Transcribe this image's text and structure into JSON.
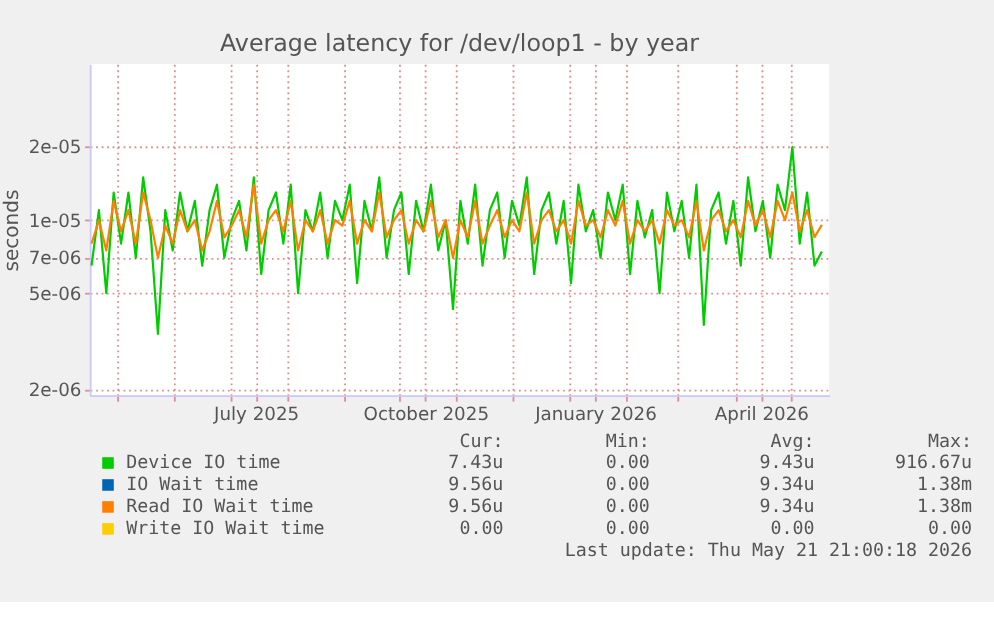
{
  "chart_data": {
    "type": "line",
    "title": "Average latency for /dev/loop1 - by year",
    "ylabel": "seconds",
    "x": [
      "2025-04-17",
      "2025-04-21",
      "2025-04-25",
      "2025-04-29",
      "2025-05-03",
      "2025-05-07",
      "2025-05-11",
      "2025-05-15",
      "2025-05-19",
      "2025-05-23",
      "2025-05-27",
      "2025-05-31",
      "2025-06-04",
      "2025-06-08",
      "2025-06-12",
      "2025-06-16",
      "2025-06-20",
      "2025-06-24",
      "2025-06-28",
      "2025-07-02",
      "2025-07-06",
      "2025-07-10",
      "2025-07-14",
      "2025-07-18",
      "2025-07-22",
      "2025-07-26",
      "2025-07-30",
      "2025-08-03",
      "2025-08-07",
      "2025-08-11",
      "2025-08-15",
      "2025-08-19",
      "2025-08-23",
      "2025-08-27",
      "2025-08-31",
      "2025-09-04",
      "2025-09-08",
      "2025-09-12",
      "2025-09-16",
      "2025-09-20",
      "2025-09-24",
      "2025-09-28",
      "2025-10-02",
      "2025-10-06",
      "2025-10-10",
      "2025-10-14",
      "2025-10-18",
      "2025-10-22",
      "2025-10-26",
      "2025-10-30",
      "2025-11-03",
      "2025-11-07",
      "2025-11-11",
      "2025-11-15",
      "2025-11-19",
      "2025-11-23",
      "2025-11-27",
      "2025-12-01",
      "2025-12-05",
      "2025-12-09",
      "2025-12-13",
      "2025-12-17",
      "2025-12-21",
      "2025-12-25",
      "2025-12-29",
      "2026-01-02",
      "2026-01-06",
      "2026-01-10",
      "2026-01-14",
      "2026-01-18",
      "2026-01-22",
      "2026-01-26",
      "2026-01-30",
      "2026-02-03",
      "2026-02-07",
      "2026-02-11",
      "2026-02-15",
      "2026-02-19",
      "2026-02-23",
      "2026-02-27",
      "2026-03-03",
      "2026-03-07",
      "2026-03-11",
      "2026-03-15",
      "2026-03-19",
      "2026-03-23",
      "2026-03-27",
      "2026-03-31",
      "2026-04-04",
      "2026-04-08",
      "2026-04-12",
      "2026-04-16",
      "2026-04-20",
      "2026-04-24",
      "2026-04-28",
      "2026-05-02",
      "2026-05-06",
      "2026-05-10",
      "2026-05-14",
      "2026-05-18"
    ],
    "series": [
      {
        "name": "Device IO time",
        "color": "#00cc00",
        "values": [
          6.5e-06,
          1.1e-05,
          5e-06,
          1.3e-05,
          8e-06,
          1.3e-05,
          7e-06,
          1.5e-05,
          9e-06,
          3.4e-06,
          1.1e-05,
          7.5e-06,
          1.3e-05,
          9e-06,
          1.2e-05,
          6.5e-06,
          1.1e-05,
          1.4e-05,
          7e-06,
          1e-05,
          1.2e-05,
          7.5e-06,
          1.5e-05,
          6e-06,
          1.1e-05,
          1.3e-05,
          8e-06,
          1.4e-05,
          5e-06,
          1.1e-05,
          9e-06,
          1.3e-05,
          7e-06,
          1.2e-05,
          1e-05,
          1.4e-05,
          5.5e-06,
          1.2e-05,
          9e-06,
          1.5e-05,
          7e-06,
          1.1e-05,
          1.3e-05,
          6e-06,
          1.2e-05,
          9e-06,
          1.4e-05,
          7.5e-06,
          1e-05,
          4.3e-06,
          1.2e-05,
          8e-06,
          1.4e-05,
          6.5e-06,
          1.1e-05,
          1.3e-05,
          7e-06,
          1.2e-05,
          9.5e-06,
          1.5e-05,
          6e-06,
          1.1e-05,
          1.3e-05,
          8e-06,
          1.2e-05,
          5.5e-06,
          1.4e-05,
          9e-06,
          1.1e-05,
          7e-06,
          1.3e-05,
          1e-05,
          1.4e-05,
          6e-06,
          1.2e-05,
          8.5e-06,
          1.1e-05,
          5e-06,
          1.3e-05,
          9e-06,
          1.2e-05,
          7e-06,
          1.4e-05,
          3.7e-06,
          1.1e-05,
          1.3e-05,
          8e-06,
          1.2e-05,
          6.5e-06,
          1.5e-05,
          9e-06,
          1.2e-05,
          7e-06,
          1.4e-05,
          1.1e-05,
          2e-05,
          8e-06,
          1.3e-05,
          6.5e-06,
          7.43e-06
        ]
      },
      {
        "name": "IO Wait time",
        "color": "#0066b3",
        "values": [
          null,
          null,
          null,
          null,
          null,
          null,
          null,
          null,
          null,
          null,
          null,
          null,
          null,
          null,
          null,
          null,
          null,
          null,
          null,
          null,
          null,
          null,
          null,
          null,
          null,
          null,
          null,
          null,
          null,
          null,
          null,
          null,
          null,
          null,
          null,
          null,
          null,
          null,
          null,
          null,
          null,
          null,
          null,
          null,
          null,
          null,
          null,
          null,
          null,
          null,
          null,
          null,
          null,
          null,
          null,
          null,
          null,
          null,
          null,
          null,
          null,
          null,
          null,
          null,
          null,
          null,
          null,
          null,
          null,
          null,
          null,
          null,
          null,
          null,
          null,
          null,
          null,
          null,
          null,
          null,
          null,
          null,
          null,
          null,
          null,
          null,
          null,
          null,
          null,
          null,
          null,
          null,
          null,
          null,
          null,
          null,
          null,
          null,
          null,
          null
        ]
      },
      {
        "name": "Read IO Wait time",
        "color": "#ff8000",
        "values": [
          8e-06,
          1e-05,
          7.5e-06,
          1.2e-05,
          9e-06,
          1.1e-05,
          8e-06,
          1.3e-05,
          1e-05,
          7e-06,
          9.5e-06,
          8e-06,
          1.1e-05,
          9e-06,
          1e-05,
          7.5e-06,
          9e-06,
          1.2e-05,
          8.5e-06,
          9.5e-06,
          1.1e-05,
          8.5e-06,
          1.4e-05,
          8e-06,
          1e-05,
          1.1e-05,
          9e-06,
          1.2e-05,
          7.5e-06,
          1e-05,
          9e-06,
          1.1e-05,
          8e-06,
          1e-05,
          9.5e-06,
          1.2e-05,
          8e-06,
          1e-05,
          9e-06,
          1.3e-05,
          8.5e-06,
          1e-05,
          1.1e-05,
          8e-06,
          1e-05,
          9e-06,
          1.2e-05,
          8.5e-06,
          1e-05,
          7e-06,
          1e-05,
          8.5e-06,
          1.2e-05,
          8e-06,
          9.5e-06,
          1.1e-05,
          8.5e-06,
          1e-05,
          9e-06,
          1.3e-05,
          8e-06,
          1e-05,
          1.1e-05,
          9e-06,
          1e-05,
          8e-06,
          1.2e-05,
          9.5e-06,
          1e-05,
          8.5e-06,
          1.1e-05,
          9.5e-06,
          1.2e-05,
          8e-06,
          1e-05,
          9e-06,
          1e-05,
          8e-06,
          1.1e-05,
          9.5e-06,
          1e-05,
          8.5e-06,
          1.2e-05,
          7.5e-06,
          1e-05,
          1.1e-05,
          9e-06,
          1e-05,
          8.5e-06,
          1.2e-05,
          9.5e-06,
          1.1e-05,
          8.5e-06,
          1.2e-05,
          1e-05,
          1.3e-05,
          9e-06,
          1.1e-05,
          8.5e-06,
          9.56e-06
        ]
      },
      {
        "name": "Write IO Wait time",
        "color": "#ffcc00",
        "values": [
          null,
          null,
          null,
          null,
          null,
          null,
          null,
          null,
          null,
          null,
          null,
          null,
          null,
          null,
          null,
          null,
          null,
          null,
          null,
          null,
          null,
          null,
          null,
          null,
          null,
          null,
          null,
          null,
          null,
          null,
          null,
          null,
          null,
          null,
          null,
          null,
          null,
          null,
          null,
          null,
          null,
          null,
          null,
          null,
          null,
          null,
          null,
          null,
          null,
          null,
          null,
          null,
          null,
          null,
          null,
          null,
          null,
          null,
          null,
          null,
          null,
          null,
          null,
          null,
          null,
          null,
          null,
          null,
          null,
          null,
          null,
          null,
          null,
          null,
          null,
          null,
          null,
          null,
          null,
          null,
          null,
          null,
          null,
          null,
          null,
          null,
          null,
          null,
          null,
          null,
          null,
          null,
          null,
          null,
          null,
          null,
          null,
          null,
          null,
          null
        ]
      }
    ],
    "xlim": [
      "2025-04-16",
      "2026-05-22"
    ],
    "xticks": [
      {
        "value": "2025-05-01",
        "label": null
      },
      {
        "value": "2025-06-01",
        "label": null
      },
      {
        "value": "2025-07-01",
        "label": null
      },
      {
        "value": "2025-07-15",
        "label": "July 2025"
      },
      {
        "value": "2025-08-01",
        "label": null
      },
      {
        "value": "2025-09-01",
        "label": null
      },
      {
        "value": "2025-10-01",
        "label": null
      },
      {
        "value": "2025-10-15",
        "label": "October 2025"
      },
      {
        "value": "2025-11-01",
        "label": null
      },
      {
        "value": "2025-12-01",
        "label": null
      },
      {
        "value": "2026-01-01",
        "label": null
      },
      {
        "value": "2026-01-15",
        "label": "January 2026"
      },
      {
        "value": "2026-02-01",
        "label": null
      },
      {
        "value": "2026-03-01",
        "label": null
      },
      {
        "value": "2026-04-01",
        "label": null
      },
      {
        "value": "2026-04-15",
        "label": "April 2026"
      },
      {
        "value": "2026-05-01",
        "label": null
      }
    ],
    "ylim": [
      1.9e-06,
      4.4e-05
    ],
    "yticks": [
      {
        "value": 2e-06,
        "label": "2e-06"
      },
      {
        "value": 5e-06,
        "label": "5e-06"
      },
      {
        "value": 7e-06,
        "label": "7e-06"
      },
      {
        "value": 1e-05,
        "label": "1e-05"
      },
      {
        "value": 2e-05,
        "label": "2e-05"
      }
    ],
    "log": "y",
    "grid": true,
    "legend": "bottom",
    "line_style": "solid",
    "marker": "none",
    "annotations": [
      "Cur:",
      "Min:",
      "Avg:",
      "Max:",
      "7.43u",
      "0.00",
      "9.43u",
      "916.67u",
      "9.56u",
      "0.00",
      "9.34u",
      "1.38m",
      "9.56u",
      "0.00",
      "9.34u",
      "1.38m",
      "0.00",
      "0.00",
      "0.00",
      "0.00",
      "Last update: Thu May 21 21:00:18 2026"
    ]
  }
}
